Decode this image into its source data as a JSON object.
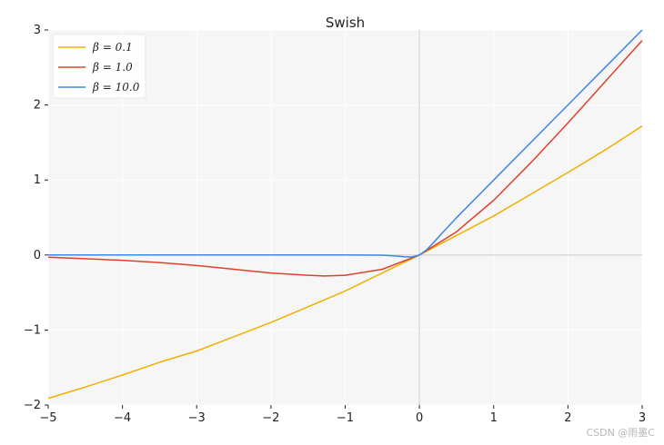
{
  "chart_data": {
    "type": "line",
    "title": "Swish",
    "xlim": [
      -5,
      3
    ],
    "ylim": [
      -2,
      3
    ],
    "xticks": [
      -5,
      -4,
      -3,
      -2,
      -1,
      0,
      1,
      2,
      3
    ],
    "yticks": [
      -2,
      -1,
      0,
      1,
      2,
      3
    ],
    "xtick_labels": [
      "−5",
      "−4",
      "−3",
      "−2",
      "−1",
      "0",
      "1",
      "2",
      "3"
    ],
    "ytick_labels": [
      "−2",
      "−1",
      "0",
      "1",
      "2",
      "3"
    ],
    "grid": true,
    "legend_position": "top-left",
    "series": [
      {
        "name": "β = 0.1",
        "color": "#f0b000",
        "x": [
          -5,
          -4.5,
          -4,
          -3.5,
          -3,
          -2.5,
          -2,
          -1.5,
          -1,
          -0.5,
          0,
          0.5,
          1,
          1.5,
          2,
          2.5,
          3
        ],
        "y": [
          -1.91,
          -1.76,
          -1.6,
          -1.43,
          -1.28,
          -1.09,
          -0.9,
          -0.69,
          -0.48,
          -0.24,
          0.0,
          0.26,
          0.52,
          0.81,
          1.1,
          1.4,
          1.72
        ]
      },
      {
        "name": "β = 1.0",
        "color": "#e0402b",
        "x": [
          -5,
          -4.5,
          -4,
          -3.5,
          -3,
          -2.5,
          -2,
          -1.5,
          -1.28,
          -1,
          -0.5,
          0,
          0.5,
          1,
          1.5,
          2,
          2.5,
          3
        ],
        "y": [
          -0.03,
          -0.05,
          -0.07,
          -0.1,
          -0.14,
          -0.19,
          -0.24,
          -0.27,
          -0.28,
          -0.27,
          -0.19,
          0.0,
          0.31,
          0.73,
          1.23,
          1.76,
          2.31,
          2.86
        ]
      },
      {
        "name": "β = 10.0",
        "color": "#3d85e6",
        "x": [
          -5,
          -3,
          -1,
          -0.5,
          -0.3,
          -0.2,
          -0.1,
          0,
          0.1,
          0.2,
          0.3,
          0.5,
          1,
          1.5,
          2,
          2.5,
          3
        ],
        "y": [
          0.0,
          0.0,
          0.0,
          -0.003,
          -0.014,
          -0.024,
          -0.027,
          0.0,
          0.073,
          0.176,
          0.286,
          0.497,
          1.0,
          1.5,
          2.0,
          2.5,
          3.0
        ]
      }
    ]
  },
  "watermark": "CSDN @雨墨C",
  "colors": {
    "plot_background": "#f6f6f6",
    "grid": "#ffffff",
    "zero_lines": "#d6d6d6"
  }
}
